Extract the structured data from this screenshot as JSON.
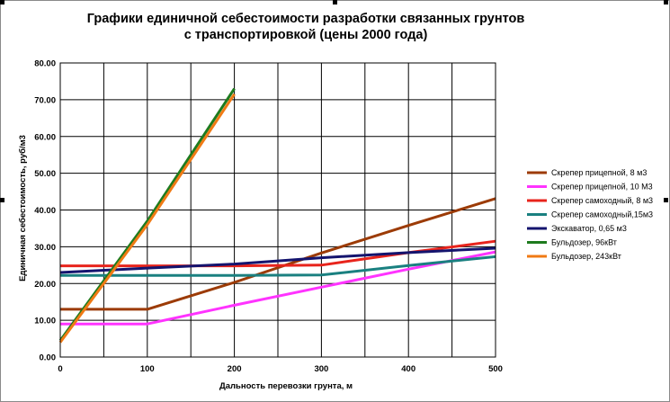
{
  "window": {
    "title_line1": "Графики единичной себестоимости разработки связанных грунтов",
    "title_line2": "с транспортировкой (цены 2000 года)"
  },
  "chart_data": {
    "type": "line",
    "title": "Графики единичной себестоимости разработки связанных грунтов с транспортировкой (цены 2000 года)",
    "xlabel": "Дальность перевозки грунта, м",
    "ylabel": "Единичная себестоимость, руб/м3",
    "xlim": [
      0,
      500
    ],
    "ylim": [
      0,
      80
    ],
    "x_ticks": [
      "0",
      "100",
      "200",
      "300",
      "400",
      "500"
    ],
    "y_ticks": [
      "0.00",
      "10.00",
      "20.00",
      "30.00",
      "40.00",
      "50.00",
      "60.00",
      "70.00",
      "80.00"
    ],
    "grid": true,
    "legend_position": "right",
    "series": [
      {
        "name": "Скрепер прицепной,  8 м3",
        "color": "#9c3b06",
        "x": [
          0,
          100,
          200,
          300,
          400,
          500
        ],
        "values": [
          13,
          13,
          20.3,
          28.3,
          35.8,
          43.1
        ]
      },
      {
        "name": "Скрепер прицепной,  10 М3",
        "color": "#ff33ff",
        "x": [
          0,
          100,
          200,
          300,
          400,
          500
        ],
        "values": [
          9,
          9,
          14.1,
          19,
          23.9,
          28.6
        ]
      },
      {
        "name": "Скрепер самоходный, 8 м3",
        "color": "#e8241c",
        "x": [
          0,
          100,
          200,
          300,
          400,
          500
        ],
        "values": [
          24.8,
          24.8,
          24.8,
          25,
          28.4,
          31.5
        ]
      },
      {
        "name": "Скрепер самоходный,15м3",
        "color": "#1a8080",
        "x": [
          0,
          100,
          200,
          300,
          400,
          500
        ],
        "values": [
          22.2,
          22.2,
          22.2,
          22.3,
          24.9,
          27.3
        ]
      },
      {
        "name": "Экскаватор, 0,65 м3",
        "color": "#14146e",
        "x": [
          0,
          100,
          200,
          300,
          400,
          500
        ],
        "values": [
          23,
          24.2,
          25.3,
          27,
          28.4,
          29.6
        ]
      },
      {
        "name": "Бульдозер, 96кВт",
        "color": "#1e7b1e",
        "x": [
          0,
          100,
          200
        ],
        "values": [
          4.5,
          37,
          73
        ]
      },
      {
        "name": "Бульдозер, 243кВт",
        "color": "#f07a14",
        "x": [
          0,
          100,
          200
        ],
        "values": [
          4,
          36,
          71.5
        ]
      }
    ]
  }
}
